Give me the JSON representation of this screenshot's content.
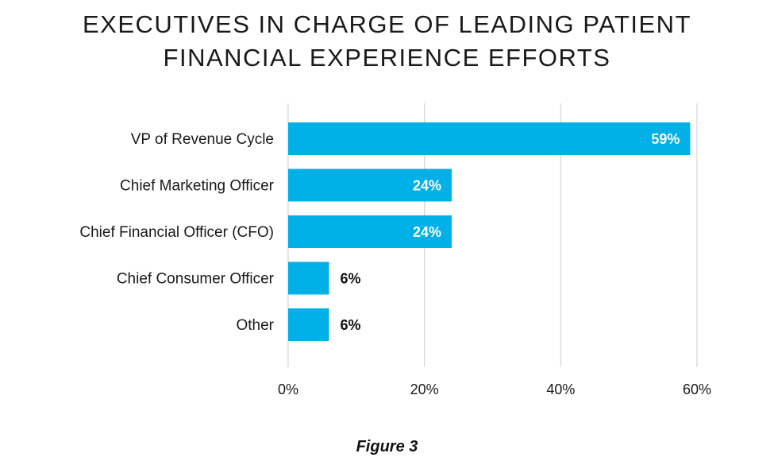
{
  "colors": {
    "bar": "#00b0e6",
    "grid": "#d4d4d4",
    "text": "#1a1a1a",
    "label_inside": "#ffffff",
    "label_outside": "#111111"
  },
  "chart_data": {
    "type": "bar",
    "orientation": "horizontal",
    "title_lines": [
      "EXECUTIVES IN CHARGE OF LEADING PATIENT",
      "FINANCIAL EXPERIENCE EFFORTS"
    ],
    "categories": [
      "VP of Revenue Cycle",
      "Chief Marketing Officer",
      "Chief Financial Officer (CFO)",
      "Chief Consumer Officer",
      "Other"
    ],
    "values": [
      59,
      24,
      24,
      6,
      6
    ],
    "value_labels": [
      "59%",
      "24%",
      "24%",
      "6%",
      "6%"
    ],
    "xlim": [
      0,
      60
    ],
    "xticks": [
      0,
      20,
      40,
      60
    ],
    "xtick_labels": [
      "0%",
      "20%",
      "40%",
      "60%"
    ],
    "xlabel": "",
    "ylabel": "",
    "grid": "vertical"
  },
  "caption": "Figure 3"
}
